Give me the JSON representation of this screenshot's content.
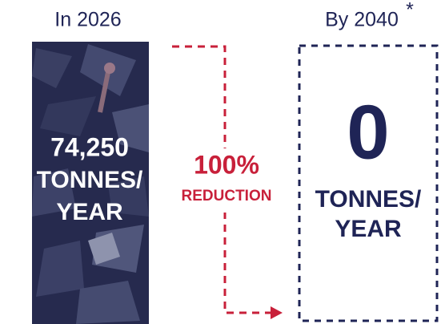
{
  "left": {
    "heading": "In 2026",
    "amount": "74,250",
    "unit_line1": "TONNES/",
    "unit_line2": "YEAR"
  },
  "middle": {
    "percent": "100%",
    "label": "REDUCTION"
  },
  "right": {
    "heading": "By 2040",
    "footnote_mark": "*",
    "amount": "0",
    "unit_line1": "TONNES/",
    "unit_line2": "YEAR"
  }
}
